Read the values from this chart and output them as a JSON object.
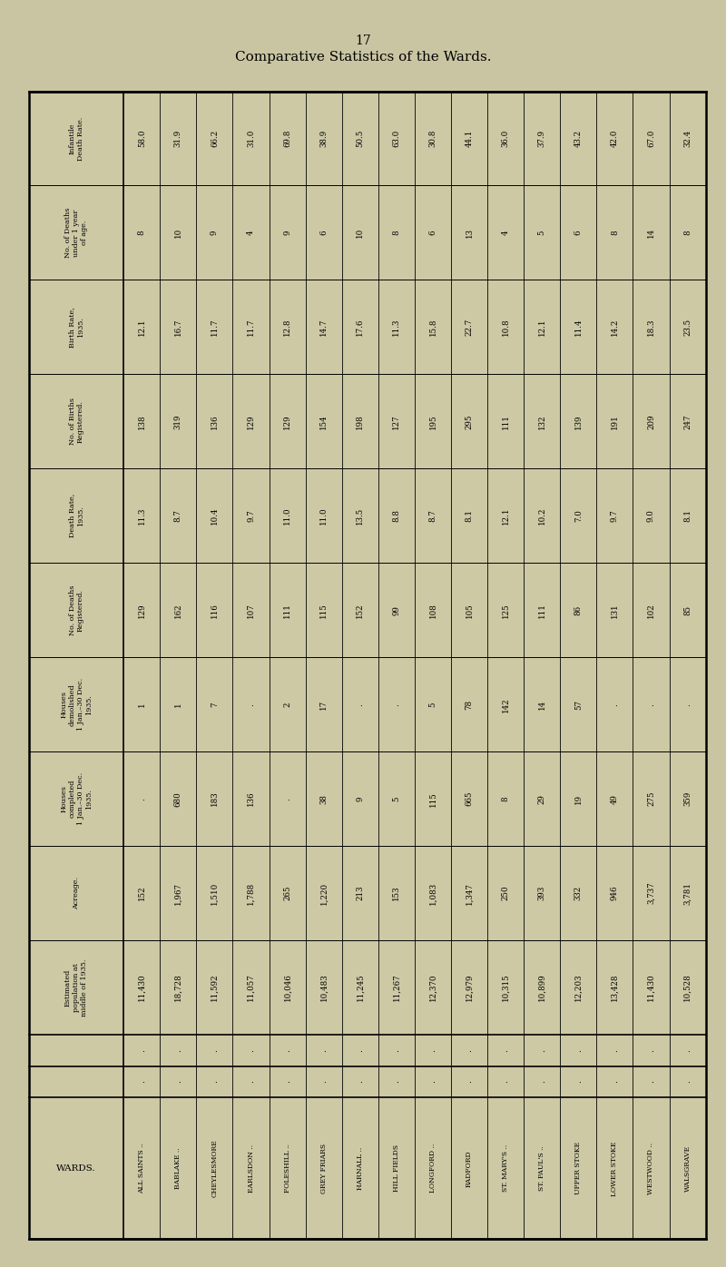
{
  "title": "Comparative Statistics of the Wards.",
  "page_number": "17",
  "bg_color": "#c9c5a2",
  "table_bg": "#cdc9a5",
  "row_headers": [
    "Infantile\nDeath Rate.",
    "No. of Deaths\nunder 1 year\nof age.",
    "Birth Rate,\n1935.",
    "No. of Births\nRegistered.",
    "Death Rate,\n1935.",
    "No. of Deaths\nRegistered.",
    "Houses\ndemolished\n1 Jan.–30 Dec.\n1935.",
    "Houses\ncompleted\n1 Jan.–30 Dec.\n1935.",
    "Acreage.",
    "Estimated\npopulation at\nmiddle of 1935.",
    "row_dots1",
    "row_dots2",
    "WARDS."
  ],
  "wards": [
    "ALL SAINTS ..",
    "BABLAKE ..",
    "CHEYLESMORE",
    "EARLSDON ..",
    "FOLESHILL ..",
    "GREY FRIARS",
    "HARNALL ..",
    "HILL FIELDS",
    "LONGFORD ..",
    "RADFORD",
    "ST. MARY'S ..",
    "ST. PAUL'S ..",
    "UPPER STOKE",
    "LOWER STOKE",
    "WESTWOOD ..",
    "WALSGRAVE"
  ],
  "data_by_row": {
    "infantile_death_rate": [
      "58.0",
      "31.9",
      "66.2",
      "31.0",
      "69.8",
      "38.9",
      "50.5",
      "63.0",
      "30.8",
      "44.1",
      "36.0",
      "37.9",
      "43.2",
      "42.0",
      "67.0",
      "32.4"
    ],
    "deaths_under_1": [
      8,
      10,
      9,
      4,
      9,
      6,
      10,
      8,
      6,
      13,
      4,
      5,
      6,
      8,
      14,
      8
    ],
    "birth_rate": [
      "12.1",
      "16.7",
      "11.7",
      "11.7",
      "12.8",
      "14.7",
      "17.6",
      "11.3",
      "15.8",
      "22.7",
      "10.8",
      "12.1",
      "11.4",
      "14.2",
      "18.3",
      "23.5"
    ],
    "births_registered": [
      138,
      319,
      136,
      129,
      129,
      154,
      198,
      127,
      195,
      295,
      111,
      132,
      139,
      191,
      209,
      247
    ],
    "death_rate": [
      "11.3",
      "8.7",
      "10.4",
      "9.7",
      "11.0",
      "11.0",
      "13.5",
      "8.8",
      "8.7",
      "8.1",
      "12.1",
      "10.2",
      "7.0",
      "9.7",
      "9.0",
      "8.1"
    ],
    "deaths_registered": [
      129,
      162,
      116,
      107,
      111,
      115,
      152,
      99,
      108,
      105,
      125,
      111,
      86,
      131,
      102,
      85
    ],
    "houses_demolished": [
      1,
      1,
      7,
      ".",
      2,
      17,
      ".",
      ".",
      5,
      78,
      142,
      14,
      57,
      ".",
      ".",
      "."
    ],
    "houses_completed": [
      ".",
      680,
      183,
      136,
      ".",
      38,
      9,
      5,
      115,
      665,
      8,
      29,
      19,
      49,
      275,
      359
    ],
    "acreage": [
      152,
      1967,
      1510,
      1788,
      265,
      1220,
      213,
      153,
      1083,
      1347,
      250,
      393,
      332,
      946,
      3737,
      3781
    ],
    "population": [
      11430,
      18728,
      11592,
      11057,
      10046,
      10483,
      11245,
      11267,
      12370,
      12979,
      10315,
      10899,
      12203,
      13428,
      11430,
      10528
    ]
  }
}
